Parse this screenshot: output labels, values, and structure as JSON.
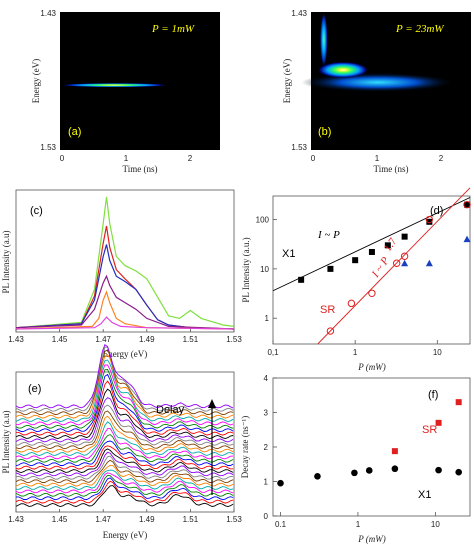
{
  "chart_data": [
    {
      "type": "heatmap",
      "panel": "(a)",
      "annotation": "P = 1mW",
      "annotation_color": "#ffff00",
      "xlabel": "Time (ns)",
      "ylabel": "Energy (eV)",
      "xlim": [
        -0.05,
        2.45
      ],
      "ylim": [
        1.43,
        1.53
      ],
      "xticks": [
        "0",
        "1",
        "2"
      ],
      "yticks": [
        "1.43",
        "1.53"
      ],
      "background": "#000000",
      "blobs": [
        {
          "t": 0.8,
          "e": 1.477,
          "dt": 0.85,
          "de": 0.0015,
          "level": "high"
        }
      ]
    },
    {
      "type": "heatmap",
      "panel": "(b)",
      "annotation": "P = 23mW",
      "annotation_color": "#ffff00",
      "xlabel": "Time (ns)",
      "ylabel": "Energy (eV)",
      "xlim": [
        -0.05,
        2.45
      ],
      "ylim": [
        1.43,
        1.53
      ],
      "xticks": [
        "0",
        "1",
        "2"
      ],
      "yticks": [
        "1.43",
        "1.53"
      ],
      "background": "#000000",
      "blobs": [
        {
          "t": 1.0,
          "e": 1.479,
          "dt": 1.2,
          "de": 0.007,
          "level": "low"
        },
        {
          "t": 0.45,
          "e": 1.488,
          "dt": 0.4,
          "de": 0.006,
          "level": "high"
        },
        {
          "t": 0.15,
          "e": 1.51,
          "dt": 0.06,
          "de": 0.02,
          "level": "mid"
        }
      ]
    },
    {
      "type": "line",
      "panel": "(c)",
      "xlabel": "Energy (eV)",
      "ylabel": "PL Intensity (a.u)",
      "xlim": [
        1.43,
        1.53
      ],
      "xticks": [
        "1.43",
        "1.45",
        "1.47",
        "1.49",
        "1.51",
        "1.53"
      ],
      "series": [
        {
          "color": "#80e040",
          "x": [
            1.43,
            1.46,
            1.466,
            1.47,
            1.4715,
            1.473,
            1.476,
            1.48,
            1.485,
            1.49,
            1.5,
            1.505,
            1.51,
            1.515,
            1.525,
            1.53
          ],
          "y": [
            0.01,
            0.05,
            0.3,
            0.8,
            1.0,
            0.8,
            0.55,
            0.48,
            0.44,
            0.38,
            0.1,
            0.08,
            0.14,
            0.08,
            0.03,
            0.02
          ]
        },
        {
          "color": "#e02020",
          "x": [
            1.43,
            1.46,
            1.466,
            1.47,
            1.4715,
            1.473,
            1.476,
            1.48,
            1.485,
            1.49,
            1.495,
            1.5,
            1.51,
            1.53
          ],
          "y": [
            0.01,
            0.04,
            0.25,
            0.65,
            0.78,
            0.62,
            0.45,
            0.38,
            0.3,
            0.18,
            0.07,
            0.03,
            0.01,
            0.0
          ]
        },
        {
          "color": "#2030c0",
          "x": [
            1.43,
            1.46,
            1.466,
            1.47,
            1.4715,
            1.473,
            1.476,
            1.48,
            1.485,
            1.49,
            1.495,
            1.5,
            1.51,
            1.53
          ],
          "y": [
            0.01,
            0.04,
            0.22,
            0.55,
            0.64,
            0.52,
            0.4,
            0.36,
            0.3,
            0.18,
            0.07,
            0.03,
            0.01,
            0.0
          ]
        },
        {
          "color": "#8a1a8a",
          "x": [
            1.43,
            1.46,
            1.466,
            1.47,
            1.4715,
            1.473,
            1.476,
            1.48,
            1.485,
            1.49,
            1.5,
            1.53
          ],
          "y": [
            0.01,
            0.03,
            0.15,
            0.35,
            0.4,
            0.33,
            0.24,
            0.2,
            0.15,
            0.08,
            0.02,
            0.0
          ]
        },
        {
          "color": "#ff8020",
          "x": [
            1.43,
            1.465,
            1.468,
            1.47,
            1.4715,
            1.473,
            1.476,
            1.48,
            1.49,
            1.53
          ],
          "y": [
            0.0,
            0.02,
            0.08,
            0.22,
            0.28,
            0.2,
            0.08,
            0.04,
            0.01,
            0.0
          ]
        },
        {
          "color": "#e040e0",
          "x": [
            1.43,
            1.466,
            1.469,
            1.4715,
            1.474,
            1.478,
            1.49,
            1.53
          ],
          "y": [
            0.0,
            0.01,
            0.04,
            0.09,
            0.05,
            0.02,
            0.01,
            0.0
          ]
        }
      ]
    },
    {
      "type": "scatter",
      "panel": "(d)",
      "xlabel": "P (mW)",
      "ylabel": "PL Intensity (a.u.)",
      "xscale": "log",
      "yscale": "log",
      "xlim": [
        0.1,
        25
      ],
      "ylim": [
        0.3,
        300
      ],
      "xticks": [
        "0,1",
        "1",
        "10"
      ],
      "yticks": [
        "1",
        "10",
        "100"
      ],
      "labels": {
        "x1": "X1",
        "sr": "SR",
        "fit_x1": "I ~ P",
        "fit_sr": "I ~ P",
        "fit_sr_exp": "1.7"
      },
      "series": [
        {
          "name": "X1",
          "marker": "square",
          "color": "#000000",
          "x": [
            0.22,
            0.5,
            1.0,
            1.6,
            2.5,
            4.0,
            8.0,
            23.0
          ],
          "y": [
            6,
            10,
            15,
            22,
            30,
            45,
            90,
            200
          ]
        },
        {
          "name": "SR",
          "marker": "open-circle",
          "color": "#e02020",
          "x": [
            0.5,
            0.9,
            1.6,
            3.2,
            4.0,
            8.0,
            23.0
          ],
          "y": [
            0.55,
            2.0,
            3.2,
            13,
            18,
            100,
            200
          ]
        },
        {
          "marker": "triangle",
          "color": "#1a40c0",
          "x": [
            4.0,
            8.0,
            23.0
          ],
          "y": [
            13,
            13,
            40
          ]
        }
      ],
      "fits": [
        {
          "color": "#000000",
          "x": [
            0.1,
            25
          ],
          "y": [
            3.6,
            280
          ]
        },
        {
          "color": "#e02020",
          "x": [
            0.35,
            25
          ],
          "y": [
            0.3,
            440
          ]
        }
      ]
    },
    {
      "type": "line",
      "panel": "(e)",
      "xlabel": "Energy (eV)",
      "ylabel": "PL Intensity (a.u)",
      "annotation": "Delay",
      "xlim": [
        1.43,
        1.53
      ],
      "xticks": [
        "1.43",
        "1.45",
        "1.47",
        "1.49",
        "1.51",
        "1.53"
      ],
      "stack": {
        "count": 30,
        "base_peak": 1.473,
        "final_peak": 1.471,
        "colors": [
          "#000000",
          "#ff0000",
          "#0000ff",
          "#008000",
          "#ff00ff",
          "#00aaaa",
          "#ff8000",
          "#804000",
          "#808080",
          "#9000ff"
        ]
      }
    },
    {
      "type": "scatter",
      "panel": "(f)",
      "xlabel": "P (mW)",
      "ylabel": "Decay rate (ns⁻¹)",
      "xscale": "log",
      "xlim": [
        0.08,
        28
      ],
      "ylim": [
        0,
        4
      ],
      "xticks": [
        "0.1",
        "1",
        "10"
      ],
      "yticks": [
        "0",
        "1",
        "2",
        "3",
        "4"
      ],
      "labels": {
        "x1": "X1",
        "sr": "SR"
      },
      "series": [
        {
          "name": "X1",
          "marker": "circle",
          "color": "#000000",
          "x": [
            0.1,
            0.3,
            0.9,
            1.4,
            3.0,
            11.0,
            20.0
          ],
          "y": [
            0.95,
            1.15,
            1.25,
            1.32,
            1.37,
            1.33,
            1.27
          ]
        },
        {
          "name": "SR",
          "marker": "square",
          "color": "#e02020",
          "x": [
            3.0,
            11.0,
            20.0
          ],
          "y": [
            1.88,
            2.7,
            3.3
          ]
        }
      ]
    }
  ]
}
